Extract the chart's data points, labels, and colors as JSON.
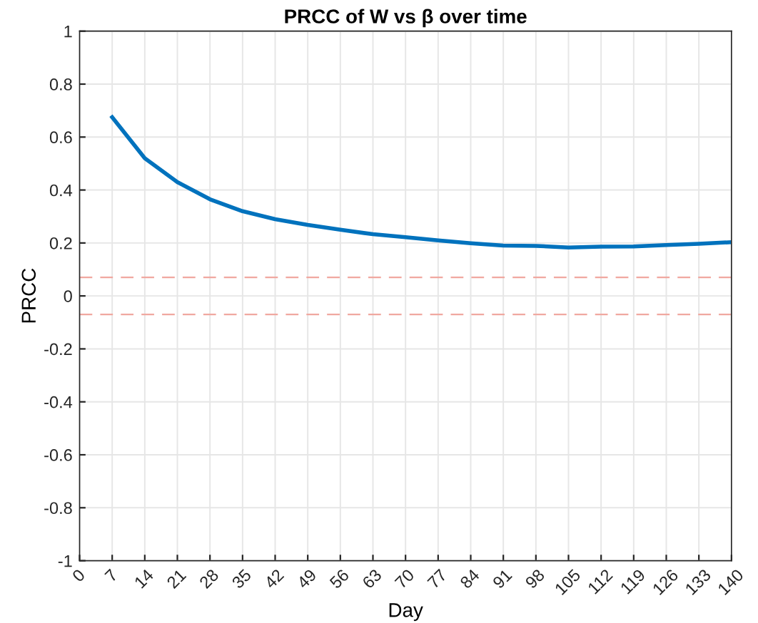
{
  "chart_data": {
    "type": "line",
    "title": "PRCC of W vs β over time",
    "xlabel": "Day",
    "ylabel": "PRCC",
    "x": [
      7,
      14,
      21,
      28,
      35,
      42,
      49,
      56,
      63,
      70,
      77,
      84,
      91,
      98,
      105,
      112,
      119,
      126,
      133,
      140
    ],
    "series": [
      {
        "color": "#0072bd",
        "values": [
          0.675,
          0.52,
          0.43,
          0.365,
          0.32,
          0.29,
          0.268,
          0.25,
          0.233,
          0.222,
          0.21,
          0.199,
          0.19,
          0.189,
          0.183,
          0.186,
          0.187,
          0.192,
          0.197,
          0.203
        ]
      }
    ],
    "xlim": [
      0,
      140
    ],
    "xticks": [
      0,
      7,
      14,
      21,
      28,
      35,
      42,
      49,
      56,
      63,
      70,
      77,
      84,
      91,
      98,
      105,
      112,
      119,
      126,
      133,
      140
    ],
    "ylim": [
      -1,
      1
    ],
    "yticks": [
      {
        "value": -1,
        "label": "-1"
      },
      {
        "value": -0.8,
        "label": "-0.8"
      },
      {
        "value": -0.6,
        "label": "-0.6"
      },
      {
        "value": -0.4,
        "label": "-0.4"
      },
      {
        "value": -0.2,
        "label": "-0.2"
      },
      0,
      0.2,
      0.4,
      0.6,
      0.8,
      1
    ],
    "ref_lines": [
      {
        "axis": "y",
        "value": 0.07,
        "color": "#f0a8a0",
        "line_style": "dashed"
      },
      {
        "axis": "y",
        "value": -0.07,
        "color": "#f0a8a0",
        "line_style": "dashed"
      }
    ],
    "grid": true,
    "line_style": "solid",
    "marker": "none",
    "legend": false
  }
}
